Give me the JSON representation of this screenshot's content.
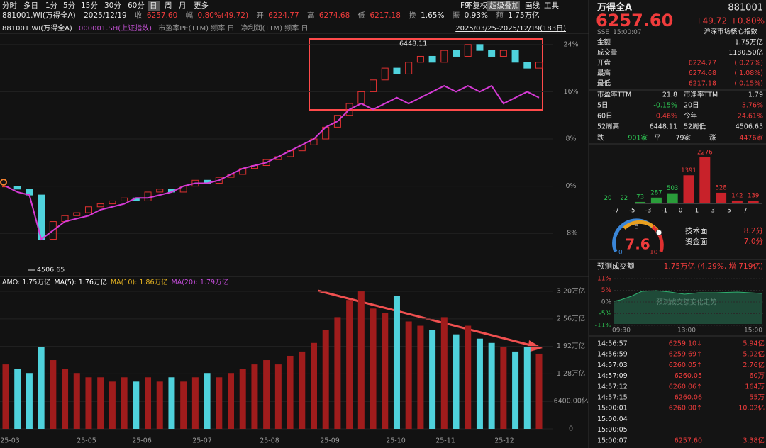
{
  "toolbar": {
    "tabs": [
      "分时",
      "多日",
      "1分",
      "5分",
      "15分",
      "30分",
      "60分",
      "日",
      "周",
      "月",
      "更多"
    ],
    "active_tab": "日",
    "buttons": [
      "F9",
      "不复权",
      "超级叠加",
      "画线",
      "工具"
    ]
  },
  "quote": {
    "code": "881001.WI(万得全A)",
    "date": "2025/12/19",
    "close_label": "收",
    "close": "6257.60",
    "chg_label": "幅",
    "chg": "0.80%(49.72)",
    "open_label": "开",
    "open": "6224.77",
    "high_label": "高",
    "high": "6274.68",
    "low_label": "低",
    "low": "6217.18",
    "turn_label": "换",
    "turn": "1.65%",
    "amp_label": "振",
    "amp": "0.93%",
    "amt_label": "额",
    "amt": "1.75万亿"
  },
  "legend_bar": {
    "items": [
      "881001.WI(万得全A)",
      "000001.SH(上证指数)",
      "市盈率PE(TTM) 频率 日",
      "净利润(TTM) 频率 日"
    ],
    "range": "2025/03/25-2025/12/19(183日)"
  },
  "chart_data": [
    {
      "type": "candlestick",
      "series": [
        {
          "name": "881001.WI(万得全A)",
          "values": [
            0,
            -0.5,
            -1.5,
            -9,
            -6,
            -5,
            -4.5,
            -3.5,
            -3,
            -2.5,
            -2,
            -2.5,
            -1,
            -0.5,
            -1,
            0,
            1,
            0.5,
            1.5,
            2,
            3,
            3.5,
            4.5,
            5,
            6,
            7,
            8,
            10,
            12,
            14,
            16,
            18,
            20,
            19,
            21,
            22,
            21,
            23,
            22,
            24,
            23,
            22,
            23,
            21,
            20,
            21
          ]
        },
        {
          "name": "000001.SH(上证指数)",
          "color": "#d63ad6",
          "values": [
            0,
            -1,
            -1.5,
            -9,
            -7.5,
            -6,
            -5.5,
            -5,
            -4,
            -3.5,
            -3,
            -2,
            -2,
            -1.5,
            -1,
            0,
            0.5,
            0.5,
            1,
            2,
            3,
            3.5,
            4,
            5,
            6,
            7,
            8,
            10,
            11,
            13,
            14,
            13,
            14,
            15,
            14,
            15,
            16,
            17,
            16,
            17,
            16,
            17,
            14,
            15,
            16,
            15
          ]
        }
      ],
      "up_color": "#e03131",
      "down_color": "#4fd2dc",
      "ylim": [
        -15.3,
        25.3
      ],
      "yticks": [
        {
          "value": 24,
          "label": "24%"
        },
        {
          "value": 16,
          "label": "16%"
        },
        {
          "value": 8,
          "label": "8%"
        },
        {
          "value": 0,
          "label": "0%"
        },
        {
          "value": -8,
          "label": "-8%"
        }
      ],
      "grid": true,
      "annotations": {
        "high": "6448.11",
        "low": "4506.65"
      },
      "xticks": [
        "25-03",
        "25-05",
        "25-06",
        "25-07",
        "25-08",
        "25-09",
        "25-10",
        "25-11",
        "25-12"
      ]
    },
    {
      "type": "bar",
      "title": "AMO: 1.75万亿",
      "legend": [
        "MA(5): 1.76万亿",
        "MA(10): 1.86万亿",
        "MA(20): 1.79万亿"
      ],
      "legend_colors": [
        "#ffffff",
        "#e6b422",
        "#c04bd6"
      ],
      "values": [
        1.5,
        1.4,
        1.3,
        1.9,
        1.6,
        1.4,
        1.3,
        1.2,
        1.2,
        1.1,
        1.2,
        1.1,
        1.2,
        1.1,
        1.2,
        1.1,
        1.2,
        1.3,
        1.2,
        1.3,
        1.4,
        1.5,
        1.6,
        1.5,
        1.7,
        1.8,
        2.0,
        2.3,
        2.6,
        3.0,
        3.2,
        2.8,
        2.7,
        3.1,
        2.5,
        2.4,
        2.3,
        2.6,
        2.2,
        2.4,
        2.1,
        2.0,
        1.9,
        1.8,
        1.9,
        1.75
      ],
      "ylim": [
        0,
        3.3
      ],
      "yticks": [
        {
          "value": 3.2,
          "label": "3.20万亿"
        },
        {
          "value": 2.56,
          "label": "2.56万亿"
        },
        {
          "value": 1.92,
          "label": "1.92万亿"
        },
        {
          "value": 1.28,
          "label": "1.28万亿"
        },
        {
          "value": 0.64,
          "label": "6400.00亿"
        },
        0
      ]
    },
    {
      "type": "bar",
      "values": [
        20,
        22,
        73,
        287,
        503,
        1391,
        2276,
        528,
        142,
        139
      ],
      "colors": [
        "#2a9d3a",
        "#2a9d3a",
        "#2a9d3a",
        "#2a9d3a",
        "#2a9d3a",
        "#c8222a",
        "#c8222a",
        "#c8222a",
        "#c8222a",
        "#c8222a"
      ],
      "xticks": [
        -7,
        -5,
        -3,
        -1,
        0,
        1,
        3,
        5,
        7
      ],
      "ylim": [
        0,
        2276
      ]
    }
  ],
  "panel": {
    "name": "万得全A",
    "code": "881001",
    "price": "6257.60",
    "change": "+49.72",
    "pct": "+0.80%",
    "exchange": "SSE",
    "time": "15:00:07",
    "tag": "沪深市场核心指数",
    "rows": [
      [
        "金额",
        "1.75万亿"
      ],
      [
        "成交量",
        "1180.50亿"
      ],
      [
        "开盘",
        "6224.77",
        "( 0.27%)"
      ],
      [
        "最高",
        "6274.68",
        "( 1.08%)"
      ],
      [
        "最低",
        "6217.18",
        "( 0.15%)"
      ]
    ],
    "stats": [
      [
        "市盈率TTM",
        "21.8",
        "市净率TTM",
        "1.79"
      ],
      [
        "5日",
        "-0.15%",
        "20日",
        "3.76%"
      ],
      [
        "60日",
        "0.46%",
        "今年",
        "24.61%"
      ],
      [
        "52周高",
        "6448.11",
        "52周低",
        "4506.65"
      ]
    ],
    "breadth": [
      "跌",
      "901家",
      "平",
      "79家",
      "涨",
      "4476家"
    ]
  },
  "score": {
    "value": "7.6",
    "min": "0",
    "mid": "5",
    "max": "10",
    "tech_label": "技术面",
    "tech": "8.2分",
    "fund_label": "资金面",
    "fund": "7.0分"
  },
  "forecast": {
    "label": "预测成交额",
    "value": "1.75万亿 (4.29%, 增 719亿)",
    "yticks": [
      "11%",
      "5%",
      "0%",
      "-5%",
      "-11%"
    ],
    "xticks": [
      "09:30",
      "13:00",
      "15:00"
    ],
    "watermark": "预测成交额变化走势"
  },
  "trades": [
    [
      "14:56:57",
      "6259.10↓",
      "5.94亿"
    ],
    [
      "14:56:59",
      "6259.69↑",
      "5.92亿"
    ],
    [
      "14:57:03",
      "6260.05↑",
      "2.76亿"
    ],
    [
      "14:57:09",
      "6260.05",
      "60万"
    ],
    [
      "14:57:12",
      "6260.06↑",
      "164万"
    ],
    [
      "14:57:15",
      "6260.06",
      "55万"
    ],
    [
      "15:00:01",
      "6260.00↑",
      "10.02亿"
    ],
    [
      "15:00:04"
    ],
    [
      "15:00:05"
    ],
    [
      "15:00:07",
      "6257.60",
      "3.38亿"
    ]
  ]
}
